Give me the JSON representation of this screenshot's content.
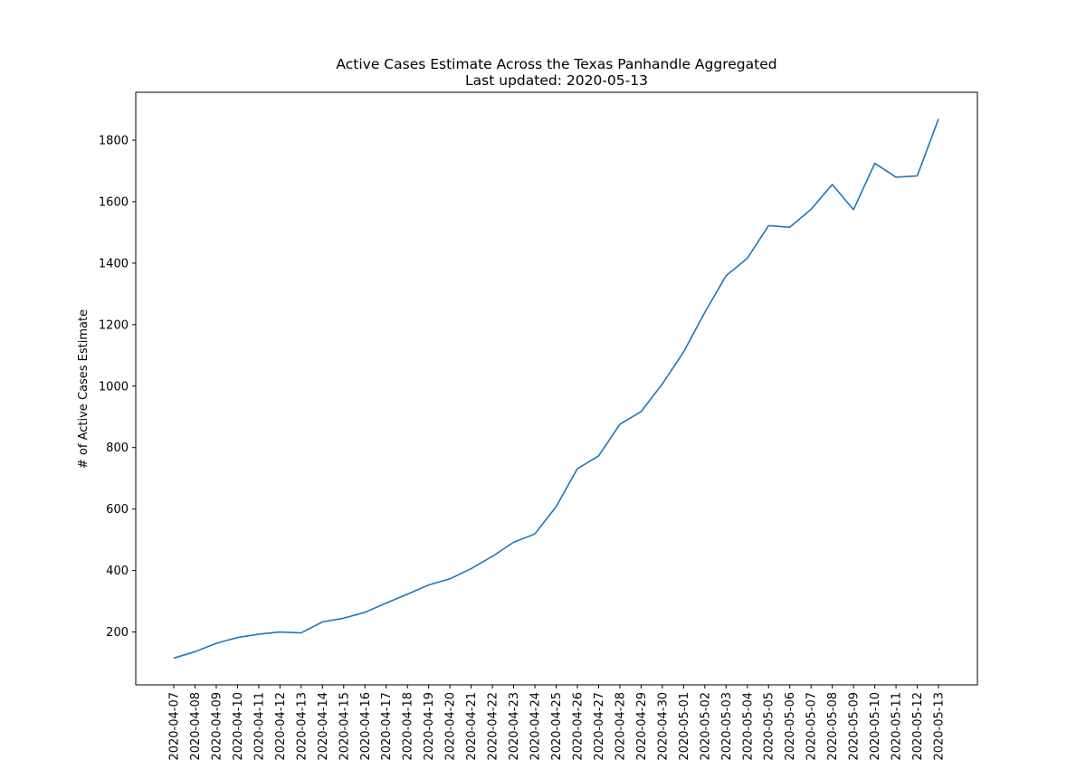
{
  "chart_data": {
    "type": "line",
    "title": "Active Cases Estimate Across the Texas Panhandle Aggregated",
    "subtitle": "Last updated: 2020-05-13",
    "xlabel": "",
    "ylabel": "# of Active Cases Estimate",
    "x": [
      "2020-04-07",
      "2020-04-08",
      "2020-04-09",
      "2020-04-10",
      "2020-04-11",
      "2020-04-12",
      "2020-04-13",
      "2020-04-14",
      "2020-04-15",
      "2020-04-16",
      "2020-04-17",
      "2020-04-18",
      "2020-04-19",
      "2020-04-20",
      "2020-04-21",
      "2020-04-22",
      "2020-04-23",
      "2020-04-24",
      "2020-04-25",
      "2020-04-26",
      "2020-04-27",
      "2020-04-28",
      "2020-04-29",
      "2020-04-30",
      "2020-05-01",
      "2020-05-02",
      "2020-05-03",
      "2020-05-04",
      "2020-05-05",
      "2020-05-06",
      "2020-05-07",
      "2020-05-08",
      "2020-05-09",
      "2020-05-10",
      "2020-05-11",
      "2020-05-12",
      "2020-05-13"
    ],
    "series": [
      {
        "values": [
          115,
          136,
          163,
          182,
          193,
          200,
          197,
          233,
          245,
          264,
          294,
          323,
          353,
          373,
          406,
          446,
          492,
          519,
          608,
          731,
          773,
          876,
          917,
          1007,
          1111,
          1240,
          1359,
          1416,
          1522,
          1517,
          1575,
          1656,
          1574,
          1725,
          1680,
          1684,
          1869
        ]
      }
    ],
    "yticks": [
      200,
      400,
      600,
      800,
      1000,
      1200,
      1400,
      1600,
      1800
    ],
    "ylim": [
      28,
      1956
    ],
    "grid": false,
    "legend": "none",
    "line_color": "#1f77b4"
  }
}
